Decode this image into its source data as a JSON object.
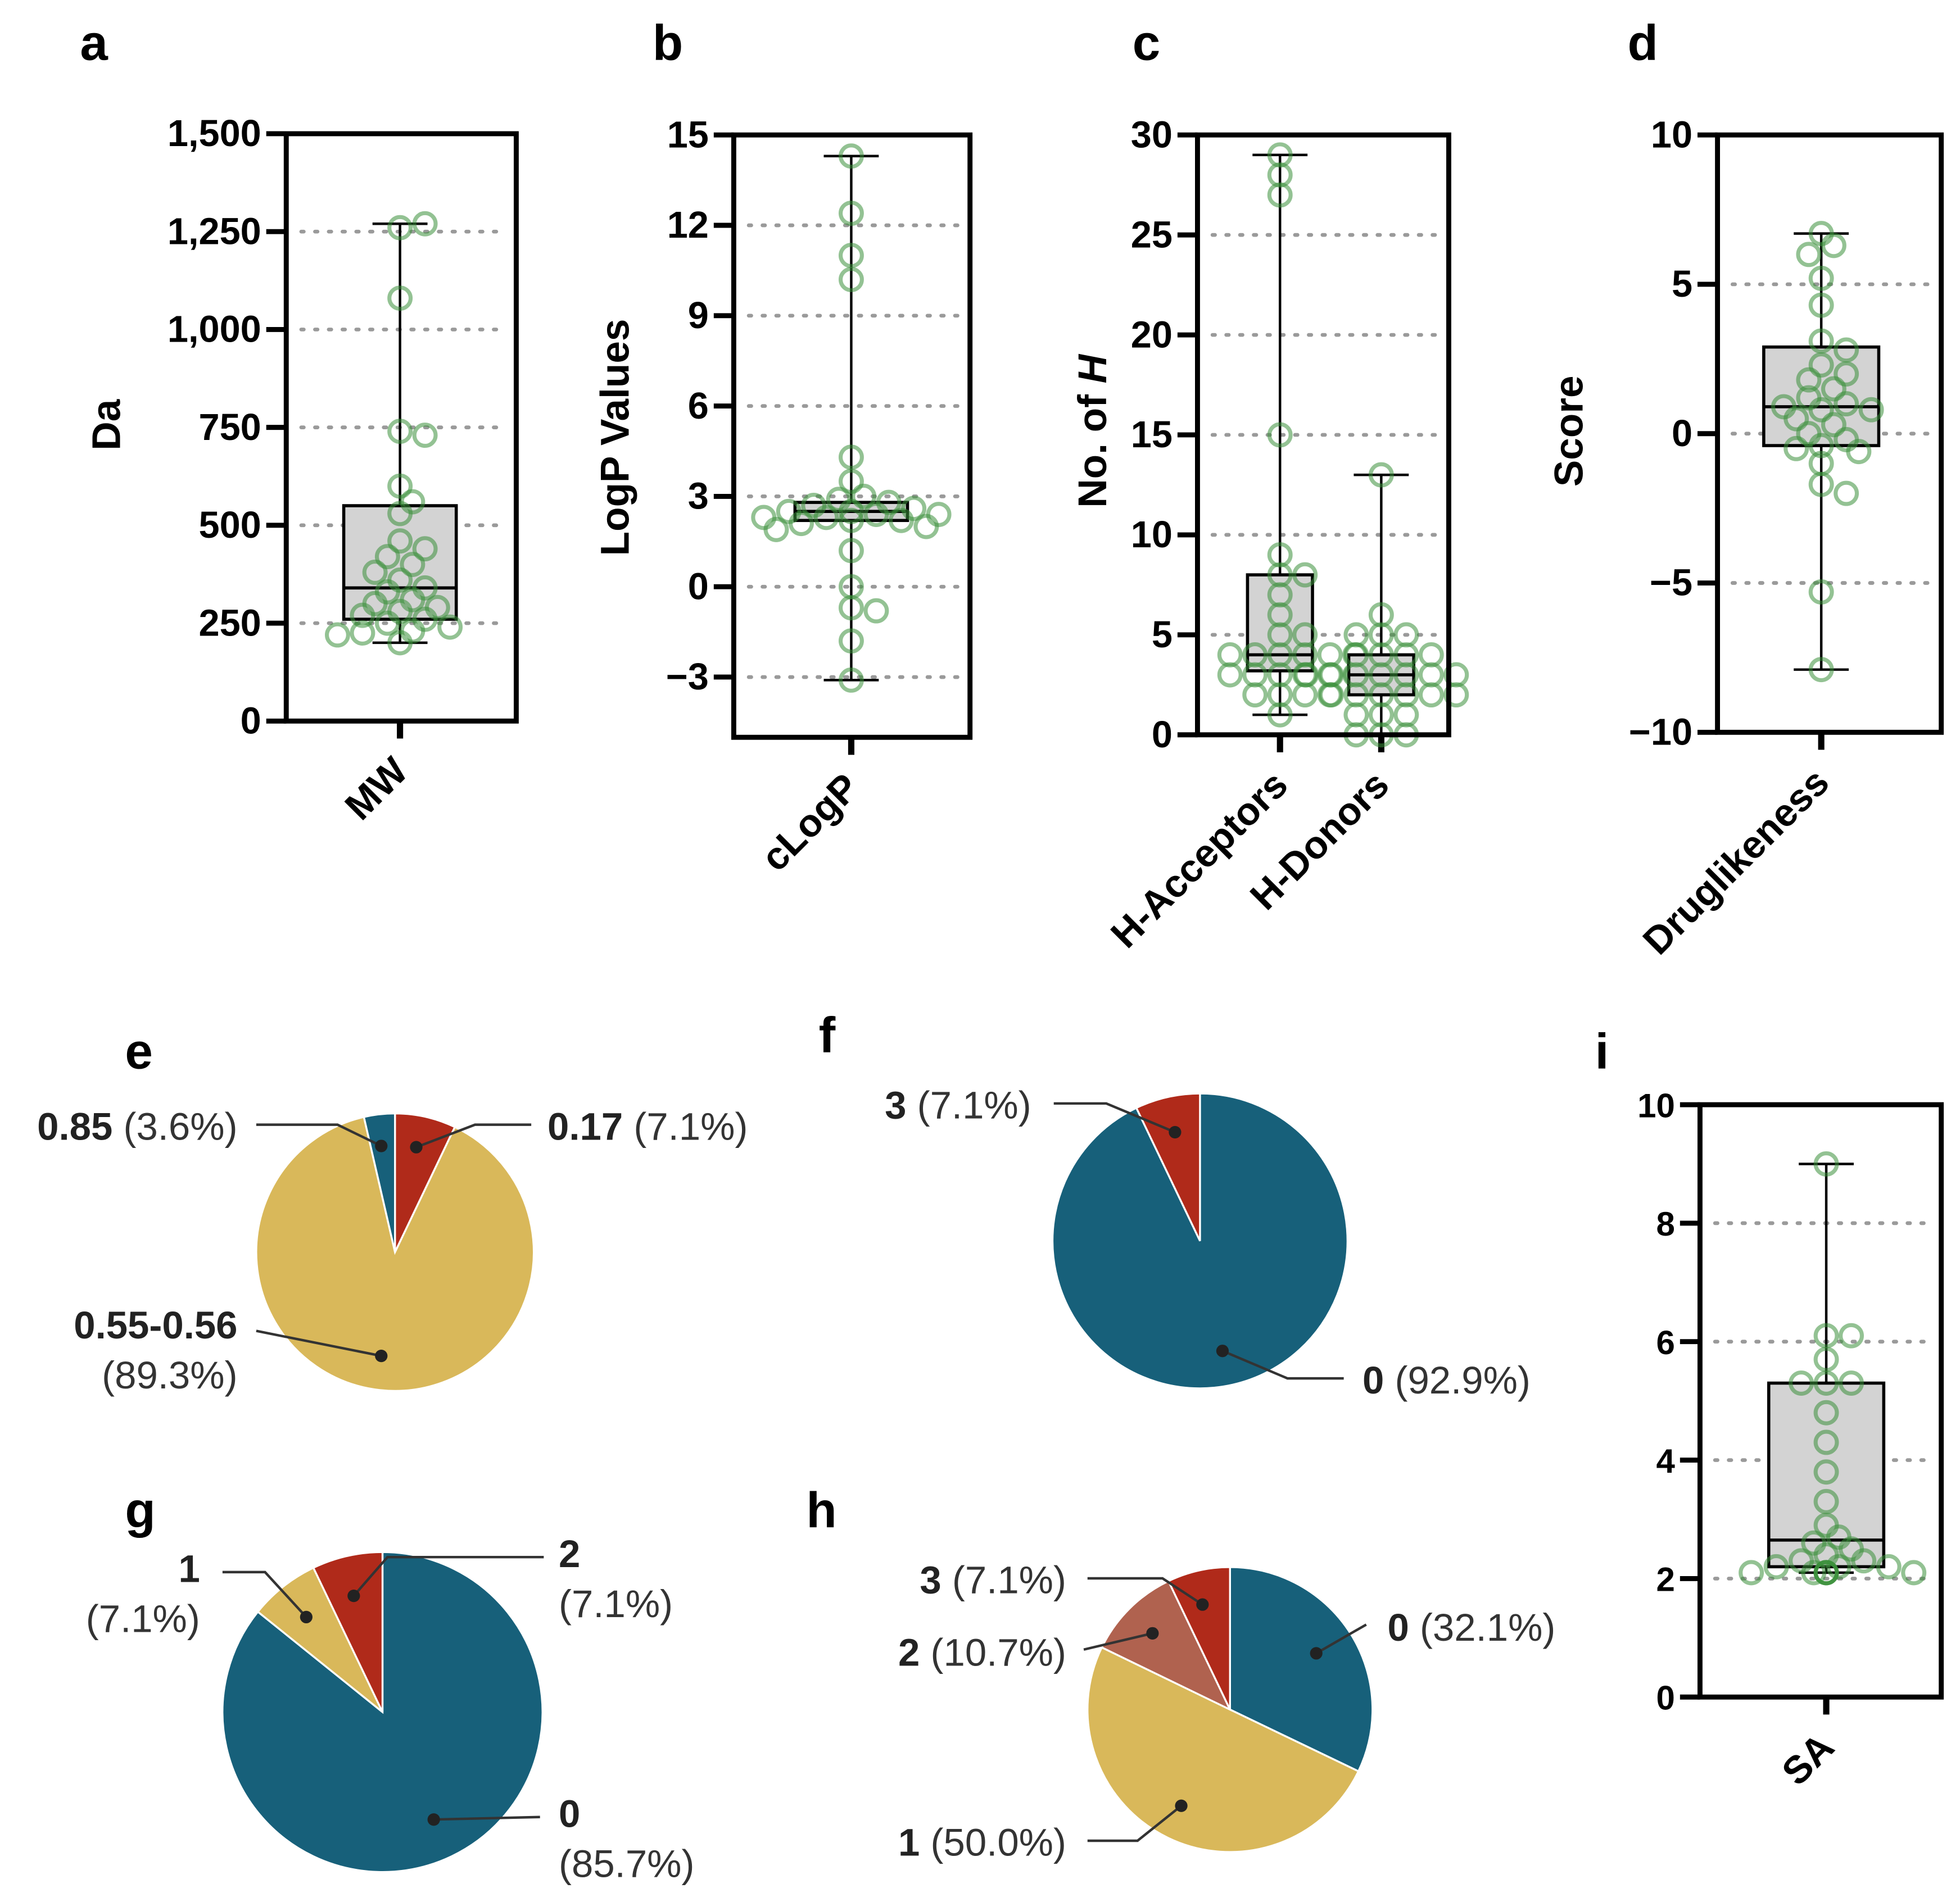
{
  "colors": {
    "blue": "#17607a",
    "yellow": "#d9b85a",
    "red": "#b02a1a",
    "brown": "#b0624f",
    "point": "#3a8f3a",
    "box": "#d3d3d3",
    "grid": "#9a9a9a"
  },
  "chart_data": [
    {
      "id": "a",
      "type": "box",
      "panel_label": "a",
      "ylabel": "Da",
      "ylim": [
        0,
        1500
      ],
      "yticks": [
        0,
        250,
        500,
        750,
        1000,
        1250,
        1500
      ],
      "ytick_labels": [
        "0",
        "250",
        "500",
        "750",
        "1,000",
        "1,250",
        "1,500"
      ],
      "grid": "dotted",
      "groups": [
        {
          "name": "MW",
          "q1": 260,
          "median": 340,
          "q3": 550,
          "min": 200,
          "max": 1270,
          "points": [
            1260,
            1270,
            1080,
            740,
            730,
            600,
            560,
            530,
            460,
            440,
            420,
            400,
            380,
            360,
            340,
            330,
            310,
            300,
            290,
            280,
            270,
            260,
            250,
            240,
            230,
            225,
            220,
            200
          ]
        }
      ]
    },
    {
      "id": "b",
      "type": "box",
      "panel_label": "b",
      "ylabel": "LogP Values",
      "ylim": [
        -5,
        15
      ],
      "yticks": [
        -3,
        0,
        3,
        6,
        9,
        12,
        15
      ],
      "ytick_labels": [
        "−3",
        "0",
        "3",
        "6",
        "9",
        "12",
        "15"
      ],
      "grid": "dotted",
      "groups": [
        {
          "name": "cLogP",
          "q1": 2.2,
          "median": 2.5,
          "q3": 2.8,
          "min": -3.1,
          "max": 14.3,
          "points": [
            14.3,
            12.4,
            11,
            10.2,
            4.3,
            3.5,
            3,
            2.9,
            2.8,
            2.7,
            2.6,
            2.5,
            2.5,
            2.4,
            2.4,
            2.3,
            2.3,
            2.2,
            2.2,
            2.1,
            2.0,
            1.9,
            1.2,
            0,
            -0.7,
            -0.8,
            -1.8,
            -3.1
          ]
        }
      ]
    },
    {
      "id": "c",
      "type": "box",
      "panel_label": "c",
      "ylabel": "No. of ",
      "ylabel_italic": "H",
      "ylim": [
        0,
        30
      ],
      "yticks": [
        0,
        5,
        10,
        15,
        20,
        25,
        30
      ],
      "ytick_labels": [
        "0",
        "5",
        "10",
        "15",
        "20",
        "25",
        "30"
      ],
      "grid": "dotted",
      "groups": [
        {
          "name": "H-Acceptors",
          "q1": 3.2,
          "median": 4,
          "q3": 8,
          "min": 1,
          "max": 29,
          "points": [
            29,
            28,
            27,
            15,
            9,
            8,
            8,
            7,
            6,
            5,
            5,
            4,
            4,
            4,
            4,
            4,
            4,
            3,
            3,
            3,
            3,
            3,
            3,
            2,
            2,
            2,
            2,
            1
          ]
        },
        {
          "name": "H-Donors",
          "q1": 2,
          "median": 3,
          "q3": 4,
          "min": 0,
          "max": 13,
          "points": [
            13,
            6,
            5,
            5,
            5,
            4,
            4,
            4,
            4,
            3,
            3,
            3,
            3,
            3,
            3,
            3,
            2,
            2,
            2,
            2,
            2,
            2,
            1,
            1,
            1,
            0,
            0,
            0
          ]
        }
      ]
    },
    {
      "id": "d",
      "type": "box",
      "panel_label": "d",
      "ylabel": "Score",
      "ylim": [
        -10,
        10
      ],
      "yticks": [
        -10,
        -5,
        0,
        5,
        10
      ],
      "ytick_labels": [
        "−10",
        "−5",
        "0",
        "5",
        "10"
      ],
      "grid": "dotted",
      "groups": [
        {
          "name": "Druglikeness",
          "q1": -0.4,
          "median": 0.9,
          "q3": 2.9,
          "min": -7.9,
          "max": 6.7,
          "points": [
            6.7,
            6.3,
            6.0,
            5.2,
            4.3,
            3.1,
            2.8,
            2.3,
            2.0,
            1.8,
            1.5,
            1.2,
            1.0,
            0.9,
            0.8,
            0.8,
            0.5,
            0.3,
            0,
            -0.2,
            -0.4,
            -0.5,
            -0.6,
            -1,
            -1.7,
            -2,
            -5.3,
            -7.9
          ]
        }
      ]
    },
    {
      "id": "i",
      "type": "box",
      "panel_label": "i",
      "ylabel": "",
      "ylim": [
        0,
        10
      ],
      "yticks": [
        0,
        2,
        4,
        6,
        8,
        10
      ],
      "ytick_labels": [
        "0",
        "2",
        "4",
        "6",
        "8",
        "10"
      ],
      "grid": "dotted",
      "groups": [
        {
          "name": "SA",
          "q1": 2.2,
          "median": 2.65,
          "q3": 5.3,
          "min": 2.1,
          "max": 9,
          "points": [
            9,
            6.1,
            6.1,
            5.7,
            5.3,
            5.3,
            5.3,
            4.8,
            4.3,
            3.8,
            3.3,
            2.9,
            2.7,
            2.6,
            2.5,
            2.4,
            2.3,
            2.3,
            2.2,
            2.2,
            2.2,
            2.1,
            2.1,
            2.1,
            2.1,
            2.1,
            2.1,
            2.1
          ]
        }
      ]
    },
    {
      "id": "e",
      "type": "pie",
      "panel_label": "e",
      "slices": [
        {
          "key": "0.17",
          "pct_label": "(7.1%)",
          "value": 7.1,
          "color": "red"
        },
        {
          "key": "0.55-0.56",
          "pct_label": "(89.3%)",
          "value": 89.3,
          "color": "yellow"
        },
        {
          "key": "0.85",
          "pct_label": "(3.6%)",
          "value": 3.6,
          "color": "blue"
        }
      ]
    },
    {
      "id": "f",
      "type": "pie",
      "panel_label": "f",
      "slices": [
        {
          "key": "0",
          "pct_label": "(92.9%)",
          "value": 92.9,
          "color": "blue"
        },
        {
          "key": "3",
          "pct_label": "(7.1%)",
          "value": 7.1,
          "color": "red"
        }
      ]
    },
    {
      "id": "g",
      "type": "pie",
      "panel_label": "g",
      "slices": [
        {
          "key": "0",
          "pct_label": "(85.7%)",
          "value": 85.7,
          "color": "blue"
        },
        {
          "key": "1",
          "pct_label": "(7.1%)",
          "value": 7.1,
          "color": "yellow"
        },
        {
          "key": "2",
          "pct_label": "(7.1%)",
          "value": 7.1,
          "color": "red"
        }
      ]
    },
    {
      "id": "h",
      "type": "pie",
      "panel_label": "h",
      "slices": [
        {
          "key": "0",
          "pct_label": "(32.1%)",
          "value": 32.1,
          "color": "blue"
        },
        {
          "key": "1",
          "pct_label": "(50.0%)",
          "value": 50.0,
          "color": "yellow"
        },
        {
          "key": "2",
          "pct_label": "(10.7%)",
          "value": 10.7,
          "color": "brown"
        },
        {
          "key": "3",
          "pct_label": "(7.1%)",
          "value": 7.1,
          "color": "red"
        }
      ]
    }
  ]
}
